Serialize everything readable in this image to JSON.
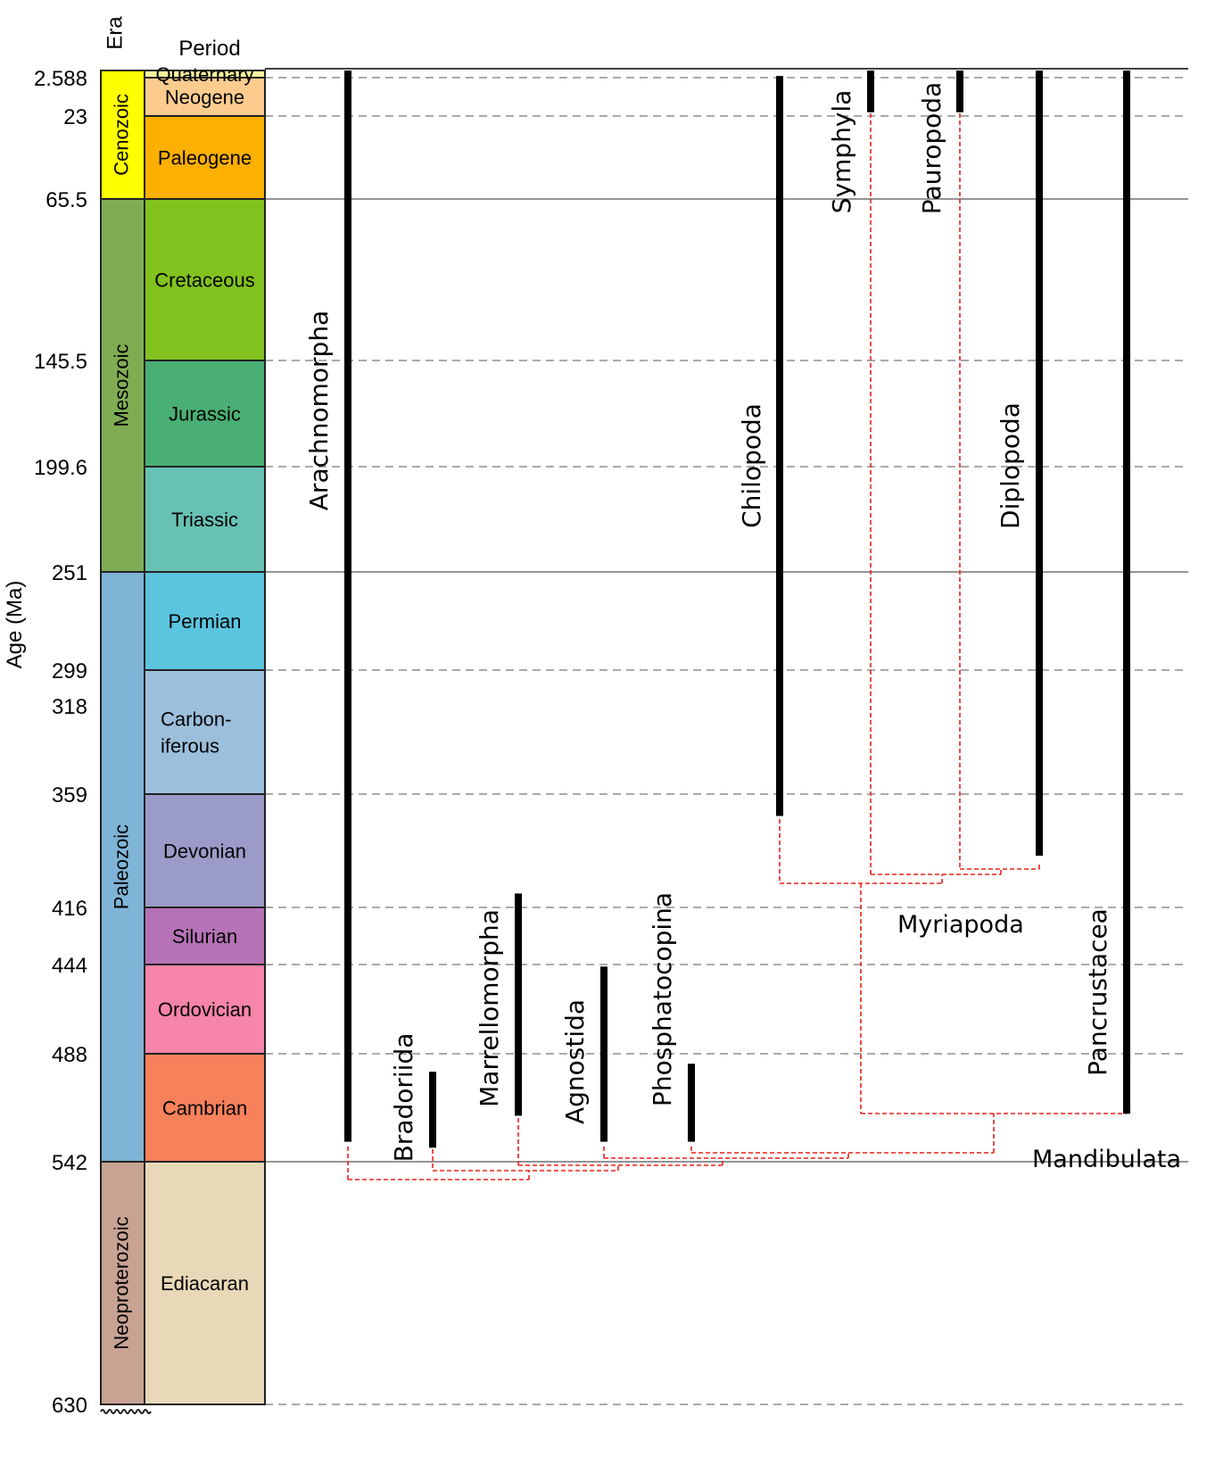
{
  "headers": {
    "era": "Era",
    "period": "Period"
  },
  "y_axis_label": "Age (Ma)",
  "eras": [
    {
      "label": "Cenozoic",
      "start": 0,
      "end": 65.5,
      "color": "#ffff00"
    },
    {
      "label": "Mesozoic",
      "start": 65.5,
      "end": 251,
      "color": "#80ad54"
    },
    {
      "label": "Paleozoic",
      "start": 251,
      "end": 542,
      "color": "#7fb4d7"
    },
    {
      "label": "Neoproterozoic",
      "start": 542,
      "end": 630,
      "color": "#c8a393"
    }
  ],
  "periods": [
    {
      "lines": [
        "Quaternary"
      ],
      "start": 0,
      "end": 2.588,
      "color": "#f9f29b"
    },
    {
      "lines": [
        "Neogene"
      ],
      "start": 2.588,
      "end": 23,
      "color": "#fbcc8e"
    },
    {
      "lines": [
        "Paleogene"
      ],
      "start": 23,
      "end": 65.5,
      "color": "#fdaf02"
    },
    {
      "lines": [
        "Cretaceous"
      ],
      "start": 65.5,
      "end": 145.5,
      "color": "#82c21f"
    },
    {
      "lines": [
        "Jurassic"
      ],
      "start": 145.5,
      "end": 199.6,
      "color": "#4aaf74"
    },
    {
      "lines": [
        "Triassic"
      ],
      "start": 199.6,
      "end": 251,
      "color": "#67c2b4"
    },
    {
      "lines": [
        "Permian"
      ],
      "start": 251,
      "end": 299,
      "color": "#5bc4df"
    },
    {
      "lines": [
        "Carbon-",
        "iferous"
      ],
      "start": 299,
      "end": 359,
      "color": "#9cbfdc"
    },
    {
      "lines": [
        "Devonian"
      ],
      "start": 359,
      "end": 416,
      "color": "#9a9bc8"
    },
    {
      "lines": [
        "Silurian"
      ],
      "start": 416,
      "end": 444,
      "color": "#b672b7"
    },
    {
      "lines": [
        "Ordovician"
      ],
      "start": 444,
      "end": 488,
      "color": "#f784a9"
    },
    {
      "lines": [
        "Cambrian"
      ],
      "start": 488,
      "end": 542,
      "color": "#f6815b"
    },
    {
      "lines": [
        "Ediacaran"
      ],
      "start": 542,
      "end": 630,
      "color": "#e8d8b7"
    }
  ],
  "ticks": [
    {
      "label": "2.588",
      "value": 2.588,
      "line": "dashed"
    },
    {
      "label": "23",
      "value": 23,
      "line": "dashed"
    },
    {
      "label": "65.5",
      "value": 65.5,
      "line": "solid"
    },
    {
      "label": "145.5",
      "value": 145.5,
      "line": "dashed"
    },
    {
      "label": "199.6",
      "value": 199.6,
      "line": "dashed"
    },
    {
      "label": "251",
      "value": 251,
      "line": "solid"
    },
    {
      "label": "299",
      "value": 299,
      "line": "dashed"
    },
    {
      "label": "318",
      "value": 318,
      "line": "none"
    },
    {
      "label": "359",
      "value": 359,
      "line": "dashed"
    },
    {
      "label": "416",
      "value": 416,
      "line": "dashed"
    },
    {
      "label": "444",
      "value": 444,
      "line": "dashed"
    },
    {
      "label": "488",
      "value": 488,
      "line": "dashed"
    },
    {
      "label": "542",
      "value": 542,
      "line": "solid"
    },
    {
      "label": "630",
      "value": 630,
      "line": "dashed"
    }
  ],
  "taxa": [
    {
      "id": "arachnomorpha",
      "label": "Arachnomorpha",
      "start": 0,
      "end": 532
    },
    {
      "id": "bradoriida",
      "label": "Bradoriida",
      "start": 497,
      "end": 535
    },
    {
      "id": "marrellomorpha",
      "label": "Marrellomorpha",
      "start": 409,
      "end": 519
    },
    {
      "id": "agnostida",
      "label": "Agnostida",
      "start": 445,
      "end": 532
    },
    {
      "id": "phosphatocopina",
      "label": "Phosphatocopina",
      "start": 493,
      "end": 532
    },
    {
      "id": "chilopoda",
      "label": "Chilopoda",
      "start": 2,
      "end": 370
    },
    {
      "id": "symphyla",
      "label": "Symphyla",
      "start": 0,
      "end": 21
    },
    {
      "id": "pauropoda",
      "label": "Pauropoda",
      "start": 0,
      "end": 21
    },
    {
      "id": "diplopoda",
      "label": "Diplopoda",
      "start": 0,
      "end": 390
    },
    {
      "id": "pancrustacea",
      "label": "Pancrustacea",
      "start": 0,
      "end": 518
    }
  ],
  "clades": [
    {
      "id": "myriapoda",
      "label": "Myriapoda"
    },
    {
      "id": "mandibulata",
      "label": "Mandibulata"
    }
  ],
  "colors": {
    "tree_lines": "#e8211a",
    "range_bars": "#000000"
  }
}
